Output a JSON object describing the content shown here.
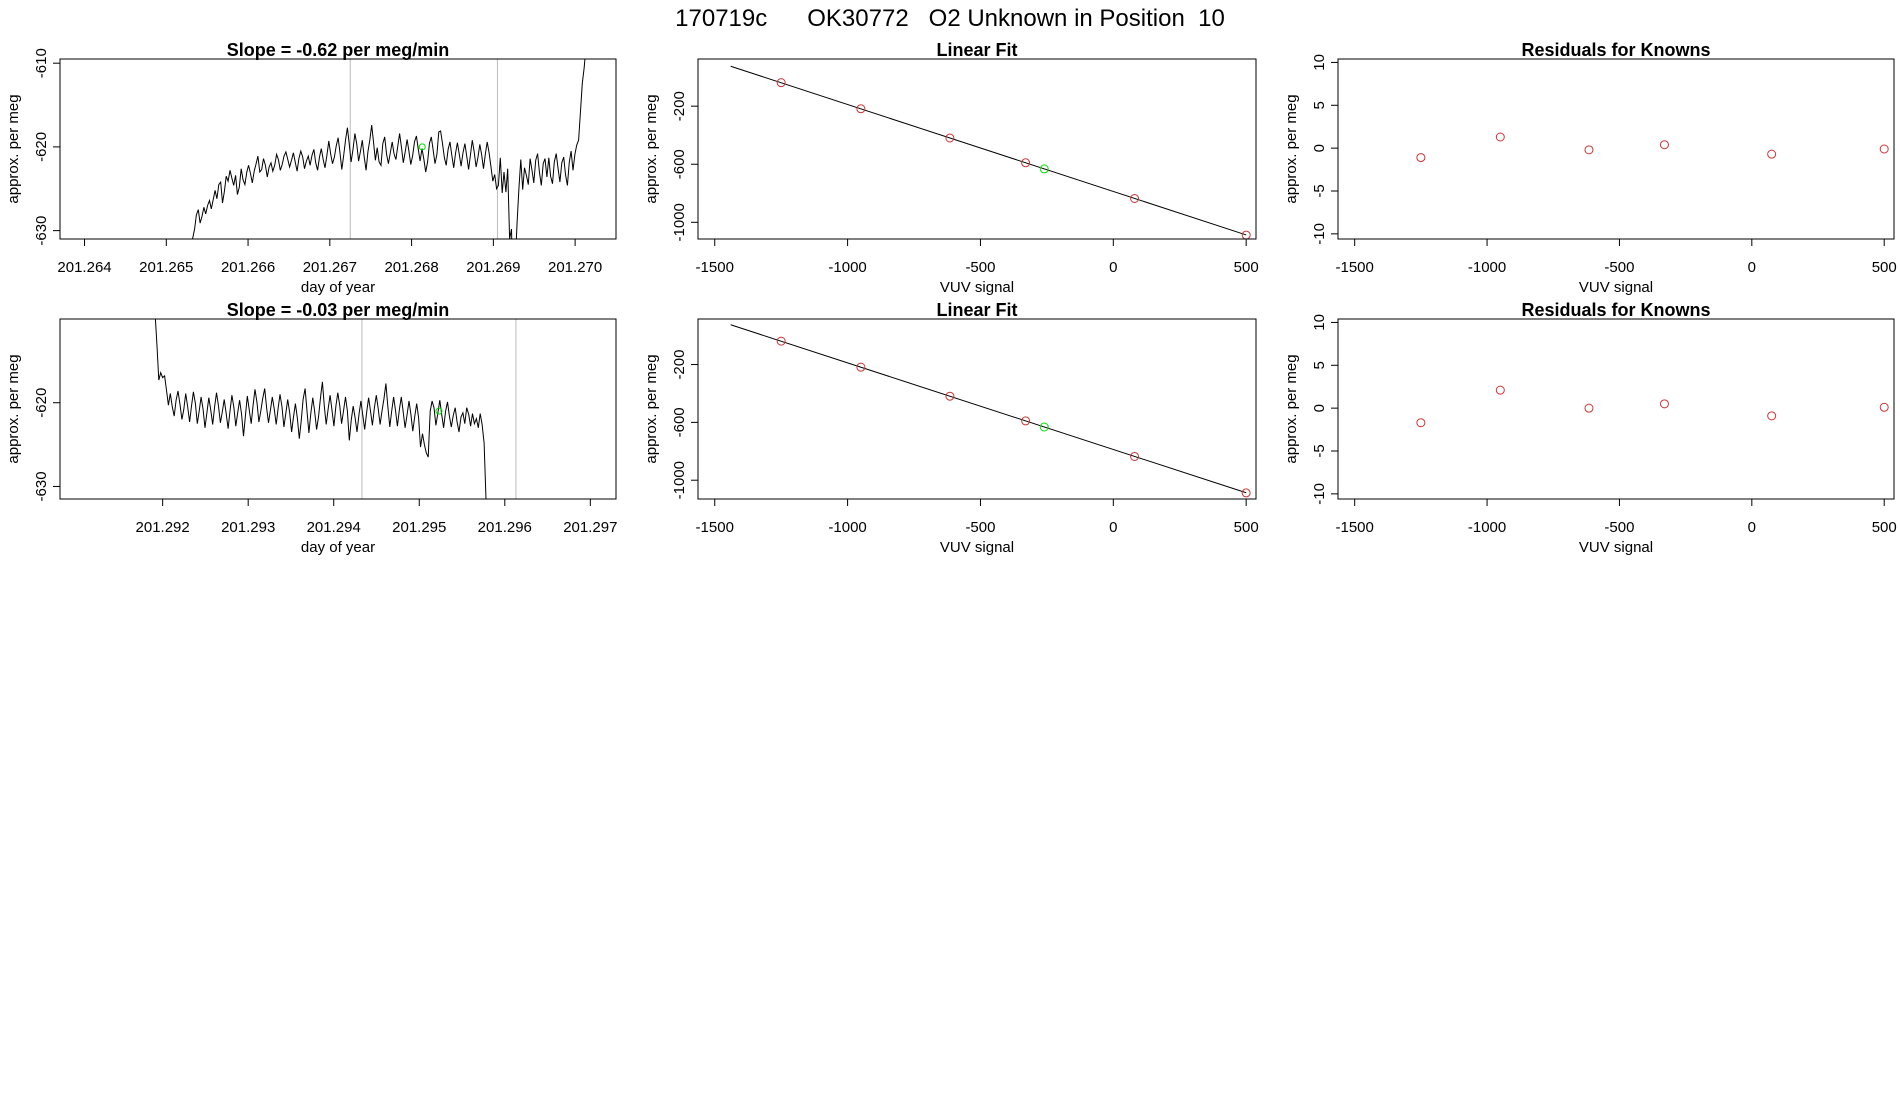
{
  "header": {
    "title": "170719c      OK30772   O2 Unknown in Position  10"
  },
  "chart_data": [
    {
      "id": "row1-timeseries",
      "type": "line",
      "title": "Slope =  -0.62  per meg/min",
      "xlabel": "day of year",
      "ylabel": "approx. per meg",
      "xlim": [
        201.2637,
        201.2705
      ],
      "ylim": [
        -631,
        -609.5
      ],
      "xticks": [
        201.264,
        201.265,
        201.266,
        201.267,
        201.268,
        201.269,
        201.27
      ],
      "xtick_labels": [
        "201.264",
        "201.265",
        "201.266",
        "201.267",
        "201.268",
        "201.269",
        "201.270"
      ],
      "yticks": [
        -610,
        -620,
        -630
      ],
      "ytick_labels": [
        "-610",
        "-620",
        "-630"
      ],
      "vlines": [
        201.26725,
        201.26905
      ],
      "x_start": 201.2653,
      "x_step": 2.28e-05,
      "values": [
        -631.4,
        -630.9,
        -629.8,
        -628.1,
        -627.5,
        -629.1,
        -628.3,
        -627.2,
        -628.0,
        -627.0,
        -626.4,
        -627.4,
        -626.3,
        -625.2,
        -626.2,
        -624.5,
        -624.2,
        -626.7,
        -625.3,
        -623.5,
        -624.1,
        -622.8,
        -623.7,
        -624.6,
        -623.4,
        -625.7,
        -624.8,
        -622.6,
        -623.9,
        -624.5,
        -623.0,
        -622.2,
        -623.2,
        -624.3,
        -622.9,
        -622.0,
        -621.1,
        -623.0,
        -622.7,
        -621.4,
        -622.2,
        -623.6,
        -622.4,
        -621.9,
        -622.9,
        -622.2,
        -620.9,
        -621.5,
        -622.8,
        -622.1,
        -621.1,
        -620.6,
        -621.5,
        -622.4,
        -621.6,
        -620.7,
        -621.8,
        -622.9,
        -621.4,
        -620.5,
        -621.2,
        -622.6,
        -621.7,
        -621.1,
        -622.2,
        -621.0,
        -620.3,
        -621.9,
        -622.8,
        -621.2,
        -620.2,
        -621.5,
        -622.5,
        -621.0,
        -619.3,
        -620.8,
        -622.0,
        -621.2,
        -619.9,
        -618.9,
        -620.7,
        -622.7,
        -621.0,
        -619.1,
        -617.7,
        -619.7,
        -621.8,
        -620.3,
        -618.4,
        -619.6,
        -621.7,
        -620.5,
        -619.2,
        -621.2,
        -622.8,
        -620.6,
        -619.2,
        -617.4,
        -619.4,
        -621.6,
        -620.1,
        -621.8,
        -622.2,
        -619.6,
        -618.8,
        -620.9,
        -622.0,
        -620.7,
        -619.4,
        -620.8,
        -621.5,
        -619.9,
        -618.4,
        -620.1,
        -621.9,
        -620.6,
        -619.1,
        -620.5,
        -622.1,
        -621.0,
        -619.4,
        -618.7,
        -620.3,
        -621.7,
        -620.2,
        -621.5,
        -623.0,
        -621.8,
        -619.6,
        -618.8,
        -620.4,
        -622.0,
        -620.9,
        -618.2,
        -618.1,
        -619.6,
        -621.3,
        -622.2,
        -620.3,
        -619.4,
        -621.0,
        -622.5,
        -620.8,
        -619.5,
        -620.9,
        -622.3,
        -620.7,
        -619.6,
        -621.1,
        -622.7,
        -620.9,
        -619.2,
        -620.6,
        -622.4,
        -621.3,
        -619.7,
        -620.9,
        -622.6,
        -620.8,
        -619.4,
        -620.7,
        -622.4,
        -624.1,
        -623.3,
        -625.0,
        -624.6,
        -621.3,
        -625.5,
        -623.0,
        -625.4,
        -622.6,
        -631.0,
        -629.8,
        -640.0,
        -634.0,
        -629.0,
        -625.0,
        -621.5,
        -625.1,
        -622.5,
        -623.4,
        -624.5,
        -621.4,
        -622.8,
        -624.3,
        -621.6,
        -620.8,
        -623.0,
        -624.6,
        -622.0,
        -621.4,
        -623.6,
        -621.3,
        -623.5,
        -624.4,
        -621.8,
        -620.8,
        -622.6,
        -624.2,
        -621.9,
        -621.2,
        -623.3,
        -624.6,
        -621.8,
        -620.5,
        -622.8,
        -620.9,
        -619.8,
        -619.2,
        -615.9,
        -612.4,
        -610.5,
        -608.0
      ],
      "markers": [
        {
          "x": 201.26813,
          "y": -620.0,
          "color": "#00dd00"
        }
      ]
    },
    {
      "id": "row1-linearfit",
      "type": "scatter",
      "title": "Linear Fit",
      "xlabel": "VUV signal",
      "ylabel": "approx. per meg",
      "xlim": [
        -1563,
        537
      ],
      "ylim": [
        -1115,
        125
      ],
      "xticks": [
        -1500,
        -1000,
        -500,
        0,
        500
      ],
      "xtick_labels": [
        "-1500",
        "-1000",
        "-500",
        "0",
        "500"
      ],
      "yticks": [
        -200,
        -600,
        -1000
      ],
      "ytick_labels": [
        "-200",
        "-600",
        "-1000"
      ],
      "line": {
        "x": [
          -1440,
          500
        ],
        "y": [
          75,
          -1087
        ]
      },
      "points": [
        {
          "x": -1250,
          "y": -38,
          "color": "#cc3333"
        },
        {
          "x": -950,
          "y": -218,
          "color": "#cc3333"
        },
        {
          "x": -615,
          "y": -419,
          "color": "#cc3333"
        },
        {
          "x": -330,
          "y": -590,
          "color": "#cc3333"
        },
        {
          "x": 80,
          "y": -836,
          "color": "#cc3333"
        },
        {
          "x": 500,
          "y": -1088,
          "color": "#cc3333"
        },
        {
          "x": -260,
          "y": -632,
          "color": "#00dd00"
        }
      ]
    },
    {
      "id": "row1-residuals",
      "type": "scatter",
      "title": "Residuals for Knowns",
      "xlabel": "VUV signal",
      "ylabel": "approx. per meg",
      "xlim": [
        -1563,
        537
      ],
      "ylim": [
        -10.6,
        10.4
      ],
      "xticks": [
        -1500,
        -1000,
        -500,
        0,
        500
      ],
      "xtick_labels": [
        "-1500",
        "-1000",
        "-500",
        "0",
        "500"
      ],
      "yticks": [
        10,
        5,
        0,
        -5,
        -10
      ],
      "ytick_labels": [
        "10",
        "5",
        "0",
        "-5",
        "-10"
      ],
      "points": [
        {
          "x": -1250,
          "y": -1.1,
          "color": "#cc3333"
        },
        {
          "x": -950,
          "y": 1.3,
          "color": "#cc3333"
        },
        {
          "x": -615,
          "y": -0.2,
          "color": "#cc3333"
        },
        {
          "x": -330,
          "y": 0.4,
          "color": "#cc3333"
        },
        {
          "x": 75,
          "y": -0.7,
          "color": "#cc3333"
        },
        {
          "x": 500,
          "y": -0.1,
          "color": "#cc3333"
        }
      ]
    },
    {
      "id": "row2-timeseries",
      "type": "line",
      "title": "Slope =  -0.03  per meg/min",
      "xlabel": "day of year",
      "ylabel": "approx. per meg",
      "xlim": [
        201.2908,
        201.2973
      ],
      "ylim": [
        -631.5,
        -610
      ],
      "xticks": [
        201.292,
        201.293,
        201.294,
        201.295,
        201.296,
        201.297
      ],
      "xtick_labels": [
        "201.292",
        "201.293",
        "201.294",
        "201.295",
        "201.296",
        "201.297"
      ],
      "yticks": [
        -620,
        -630
      ],
      "ytick_labels": [
        "-620",
        "-630"
      ],
      "vlines": [
        201.29433,
        201.29613
      ],
      "x_start": 201.29191,
      "x_step": 2.25e-05,
      "values": [
        -609.0,
        -613.0,
        -617.3,
        -616.4,
        -617.0,
        -616.8,
        -618.5,
        -620.3,
        -618.9,
        -620.5,
        -621.6,
        -619.7,
        -618.6,
        -620.2,
        -622.0,
        -620.8,
        -618.9,
        -620.5,
        -622.3,
        -620.4,
        -618.7,
        -620.1,
        -622.5,
        -621.0,
        -619.3,
        -620.8,
        -623.0,
        -621.2,
        -619.4,
        -620.9,
        -622.6,
        -620.5,
        -618.8,
        -620.4,
        -622.4,
        -621.1,
        -619.6,
        -621.3,
        -623.1,
        -621.0,
        -619.1,
        -620.6,
        -622.8,
        -621.2,
        -619.7,
        -621.4,
        -624.0,
        -621.6,
        -619.2,
        -620.9,
        -622.5,
        -620.3,
        -618.4,
        -620.0,
        -622.3,
        -621.0,
        -619.5,
        -618.3,
        -620.6,
        -622.4,
        -620.9,
        -619.3,
        -620.8,
        -622.6,
        -620.7,
        -619.0,
        -620.5,
        -622.9,
        -621.3,
        -619.6,
        -621.2,
        -623.5,
        -621.7,
        -620.1,
        -621.9,
        -624.3,
        -622.2,
        -619.6,
        -618.3,
        -621.0,
        -623.6,
        -621.3,
        -619.4,
        -621.1,
        -623.2,
        -621.7,
        -619.4,
        -617.5,
        -620.4,
        -622.6,
        -620.7,
        -619.1,
        -620.9,
        -622.8,
        -620.4,
        -618.8,
        -620.3,
        -622.5,
        -620.9,
        -619.3,
        -621.0,
        -624.5,
        -622.0,
        -620.4,
        -621.8,
        -623.5,
        -621.4,
        -619.8,
        -621.5,
        -623.2,
        -621.1,
        -619.4,
        -621.0,
        -622.7,
        -620.6,
        -619.1,
        -620.7,
        -622.6,
        -620.9,
        -619.5,
        -617.7,
        -620.4,
        -622.9,
        -621.0,
        -619.3,
        -620.9,
        -622.8,
        -620.8,
        -619.3,
        -621.1,
        -623.0,
        -621.4,
        -619.8,
        -621.4,
        -623.4,
        -621.6,
        -620.1,
        -621.8,
        -625.3,
        -623.7,
        -625.0,
        -626.0,
        -626.5,
        -621.0,
        -619.8,
        -620.6,
        -622.7,
        -621.2,
        -619.7,
        -621.4,
        -623.0,
        -621.0,
        -619.9,
        -621.6,
        -622.9,
        -621.5,
        -620.6,
        -622.3,
        -623.5,
        -621.7,
        -621.2,
        -622.5,
        -620.6,
        -621.4,
        -622.8,
        -621.3,
        -622.5,
        -621.9,
        -623.0,
        -621.3,
        -622.6,
        -624.8,
        -631.5
      ],
      "markers": [
        {
          "x": 201.29523,
          "y": -621.0,
          "color": "#00dd00"
        }
      ]
    },
    {
      "id": "row2-linearfit",
      "type": "scatter",
      "title": "Linear Fit",
      "xlabel": "VUV signal",
      "ylabel": "approx. per meg",
      "xlim": [
        -1563,
        537
      ],
      "ylim": [
        -1130,
        115
      ],
      "xticks": [
        -1500,
        -1000,
        -500,
        0,
        500
      ],
      "xtick_labels": [
        "-1500",
        "-1000",
        "-500",
        "0",
        "500"
      ],
      "yticks": [
        -200,
        -600,
        -1000
      ],
      "ytick_labels": [
        "-200",
        "-600",
        "-1000"
      ],
      "line": {
        "x": [
          -1440,
          500
        ],
        "y": [
          75,
          -1087
        ]
      },
      "points": [
        {
          "x": -1250,
          "y": -38,
          "color": "#cc3333"
        },
        {
          "x": -950,
          "y": -218,
          "color": "#cc3333"
        },
        {
          "x": -615,
          "y": -419,
          "color": "#cc3333"
        },
        {
          "x": -330,
          "y": -590,
          "color": "#cc3333"
        },
        {
          "x": 80,
          "y": -836,
          "color": "#cc3333"
        },
        {
          "x": 500,
          "y": -1088,
          "color": "#cc3333"
        },
        {
          "x": -260,
          "y": -632,
          "color": "#00dd00"
        }
      ]
    },
    {
      "id": "row2-residuals",
      "type": "scatter",
      "title": "Residuals for Knowns",
      "xlabel": "VUV signal",
      "ylabel": "approx. per meg",
      "xlim": [
        -1563,
        537
      ],
      "ylim": [
        -10.6,
        10.4
      ],
      "xticks": [
        -1500,
        -1000,
        -500,
        0,
        500
      ],
      "xtick_labels": [
        "-1500",
        "-1000",
        "-500",
        "0",
        "500"
      ],
      "yticks": [
        10,
        5,
        0,
        -5,
        -10
      ],
      "ytick_labels": [
        "10",
        "5",
        "0",
        "-5",
        "-10"
      ],
      "points": [
        {
          "x": -1250,
          "y": -1.7,
          "color": "#cc3333"
        },
        {
          "x": -950,
          "y": 2.1,
          "color": "#cc3333"
        },
        {
          "x": -615,
          "y": 0.0,
          "color": "#cc3333"
        },
        {
          "x": -330,
          "y": 0.5,
          "color": "#cc3333"
        },
        {
          "x": 75,
          "y": -0.9,
          "color": "#cc3333"
        },
        {
          "x": 500,
          "y": 0.1,
          "color": "#cc3333"
        }
      ]
    }
  ]
}
